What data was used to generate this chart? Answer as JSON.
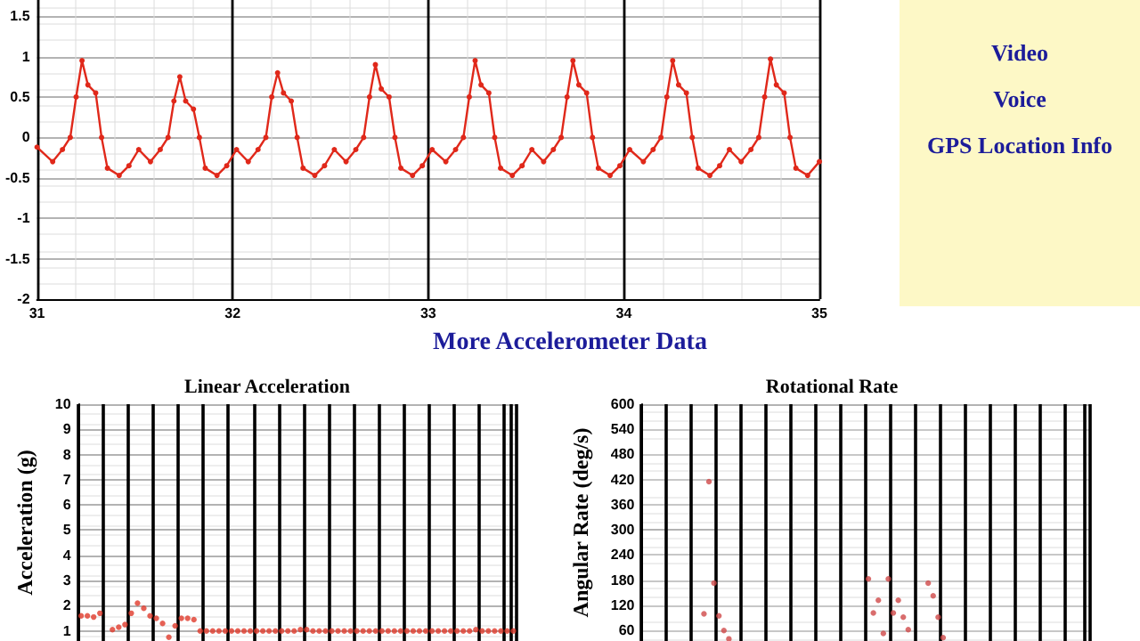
{
  "chart_data": [
    {
      "type": "line",
      "color": "#e0281a",
      "marker": "circle",
      "line_style": "solid",
      "grid": true,
      "x": [
        31.0,
        31.08,
        31.13,
        31.17,
        31.2,
        31.23,
        31.26,
        31.3,
        31.33,
        31.36,
        31.42,
        31.47,
        31.52,
        31.58,
        31.63,
        31.67,
        31.7,
        31.73,
        31.76,
        31.8,
        31.83,
        31.86,
        31.92,
        31.97,
        32.02,
        32.08,
        32.13,
        32.17,
        32.2,
        32.23,
        32.26,
        32.3,
        32.33,
        32.36,
        32.42,
        32.47,
        32.52,
        32.58,
        32.63,
        32.67,
        32.7,
        32.73,
        32.76,
        32.8,
        32.83,
        32.86,
        32.92,
        32.97,
        33.02,
        33.09,
        33.14,
        33.18,
        33.21,
        33.24,
        33.27,
        33.31,
        33.34,
        33.37,
        33.43,
        33.48,
        33.53,
        33.59,
        33.64,
        33.68,
        33.71,
        33.74,
        33.77,
        33.81,
        33.84,
        33.87,
        33.93,
        33.98,
        34.03,
        34.1,
        34.15,
        34.19,
        34.22,
        34.25,
        34.28,
        34.32,
        34.35,
        34.38,
        34.44,
        34.49,
        34.54,
        34.6,
        34.65,
        34.69,
        34.72,
        34.75,
        34.78,
        34.82,
        34.85,
        34.88,
        34.94,
        35.0
      ],
      "values": [
        -0.12,
        -0.3,
        -0.15,
        0,
        0.5,
        0.95,
        0.65,
        0.55,
        0,
        -0.38,
        -0.47,
        -0.35,
        -0.15,
        -0.3,
        -0.15,
        0,
        0.45,
        0.75,
        0.45,
        0.35,
        0,
        -0.38,
        -0.47,
        -0.35,
        -0.15,
        -0.3,
        -0.15,
        0,
        0.5,
        0.8,
        0.55,
        0.45,
        0,
        -0.38,
        -0.47,
        -0.35,
        -0.15,
        -0.3,
        -0.15,
        0,
        0.5,
        0.9,
        0.6,
        0.5,
        0,
        -0.38,
        -0.47,
        -0.35,
        -0.15,
        -0.3,
        -0.15,
        0,
        0.5,
        0.95,
        0.65,
        0.55,
        0,
        -0.38,
        -0.47,
        -0.35,
        -0.15,
        -0.3,
        -0.15,
        0,
        0.5,
        0.95,
        0.65,
        0.55,
        0,
        -0.38,
        -0.47,
        -0.35,
        -0.15,
        -0.3,
        -0.15,
        0,
        0.5,
        0.95,
        0.65,
        0.55,
        0,
        -0.38,
        -0.47,
        -0.35,
        -0.15,
        -0.3,
        -0.15,
        0,
        0.5,
        0.97,
        0.65,
        0.55,
        0,
        -0.38,
        -0.47,
        -0.3
      ],
      "xlim": [
        31,
        35
      ],
      "xticks": [
        31,
        32,
        33,
        34,
        35
      ],
      "ylim": [
        -2,
        1.7
      ],
      "yticks": [
        -2,
        -1.5,
        -1,
        -0.5,
        0,
        0.5,
        1,
        1.5
      ]
    },
    {
      "type": "other",
      "annotations": [
        "Video",
        "Voice",
        "GPS Location Info"
      ]
    },
    {
      "type": "other",
      "title": "More Accelerometer Data"
    },
    {
      "type": "scatter",
      "title": "Linear Acceleration",
      "ylabel": "Acceleration (g)",
      "color": "#e03a2a",
      "marker": "circle",
      "grid": true,
      "tick_labels": "y",
      "categories": [
        null,
        null,
        null,
        null,
        null,
        null,
        null,
        null,
        null,
        null,
        null,
        null,
        null,
        null,
        null,
        null,
        null,
        null,
        null,
        null,
        null,
        null,
        null,
        null,
        null,
        null,
        null,
        null,
        null,
        null,
        null,
        null,
        null,
        null,
        null,
        null,
        null,
        null,
        null,
        null,
        null,
        null,
        null,
        null,
        null,
        null,
        null,
        null,
        null,
        null,
        null,
        null,
        null,
        null,
        null,
        null,
        null,
        null,
        null,
        null,
        null,
        null,
        null,
        null,
        null,
        null,
        null,
        null,
        null,
        null
      ],
      "values": [
        1.6,
        1.6,
        1.55,
        1.7,
        null,
        1.05,
        1.15,
        1.25,
        1.7,
        2.1,
        1.9,
        1.6,
        1.5,
        1.3,
        0.75,
        1.2,
        1.5,
        1.5,
        1.45,
        1,
        1,
        1,
        1,
        1,
        1,
        1,
        1,
        1,
        1,
        1,
        1,
        1,
        1,
        1,
        1,
        1.05,
        1.05,
        1,
        1,
        1,
        1,
        1,
        1,
        1,
        1,
        1,
        1,
        1,
        1,
        1,
        1,
        1,
        1,
        1,
        1,
        1,
        1,
        1,
        1,
        1,
        1,
        1,
        1,
        1.05,
        1,
        1,
        1,
        1,
        1,
        1
      ],
      "ylim": [
        0.6,
        10
      ],
      "yticks": [
        1,
        2,
        3,
        4,
        5,
        6,
        7,
        8,
        9,
        10
      ]
    },
    {
      "type": "scatter",
      "title": "Rotational Rate",
      "ylabel": "Angular Rate (deg/s)",
      "color": "#d04848",
      "marker": "circle",
      "grid": true,
      "tick_labels": "y",
      "categories": [
        null,
        null,
        null,
        null,
        null,
        null,
        null,
        null,
        null,
        null,
        null,
        null,
        null,
        null,
        null,
        null,
        null,
        null,
        null,
        null,
        null,
        null,
        null,
        null,
        null,
        null,
        null,
        null,
        null,
        null,
        null,
        null,
        null,
        null,
        null,
        null,
        null,
        null,
        null,
        null,
        null,
        null,
        null,
        null,
        null,
        null,
        null,
        null,
        null,
        null,
        null,
        null,
        null,
        null,
        null,
        null,
        null,
        null,
        null,
        null,
        null,
        null,
        null,
        null,
        null,
        null,
        null,
        null,
        null,
        null,
        null,
        null,
        null,
        null,
        null,
        null,
        null,
        null,
        null,
        null,
        null,
        null,
        null,
        null,
        null,
        null,
        null,
        null,
        null,
        null
      ],
      "values": [
        null,
        null,
        null,
        null,
        null,
        null,
        null,
        null,
        null,
        null,
        null,
        null,
        100,
        415,
        173,
        95,
        60,
        40,
        null,
        null,
        null,
        null,
        null,
        null,
        null,
        null,
        null,
        null,
        null,
        null,
        null,
        null,
        null,
        null,
        null,
        null,
        null,
        null,
        null,
        null,
        null,
        null,
        null,
        null,
        null,
        183,
        102,
        132,
        53,
        183,
        102,
        132,
        92,
        62,
        null,
        null,
        null,
        173,
        143,
        92,
        43,
        null,
        null,
        null,
        null,
        null,
        null,
        null,
        null,
        null,
        null,
        null,
        null,
        null,
        null,
        null,
        null,
        null,
        null,
        null,
        null,
        null,
        null,
        null,
        null,
        null,
        null,
        null,
        null,
        null
      ],
      "ylim": [
        35,
        600
      ],
      "yticks": [
        60,
        120,
        180,
        240,
        300,
        360,
        420,
        480,
        540,
        600
      ]
    }
  ]
}
